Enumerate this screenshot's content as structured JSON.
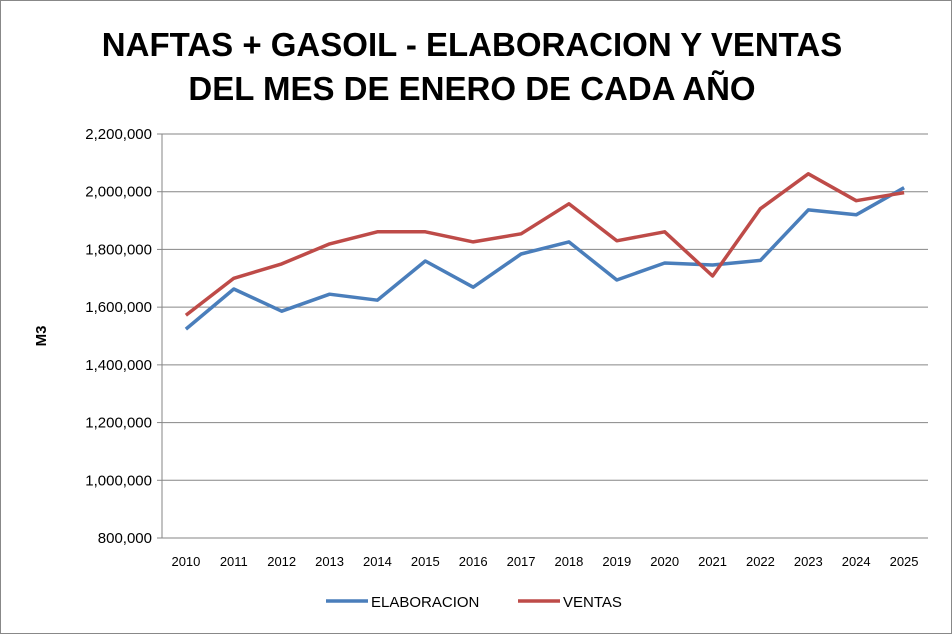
{
  "chart_data": {
    "type": "line",
    "title": [
      "NAFTAS + GASOIL - ELABORACION Y VENTAS",
      "DEL MES DE ENERO DE CADA AÑO"
    ],
    "xlabel": "",
    "ylabel": "M3",
    "ylim": [
      800000,
      2200000
    ],
    "yticks": [
      "800,000",
      "1,000,000",
      "1,200,000",
      "1,400,000",
      "1,600,000",
      "1,800,000",
      "2,000,000",
      "2,200,000"
    ],
    "ytick_values": [
      800000,
      1000000,
      1200000,
      1400000,
      1600000,
      1800000,
      2000000,
      2200000
    ],
    "categories": [
      "2010",
      "2011",
      "2012",
      "2013",
      "2014",
      "2015",
      "2016",
      "2017",
      "2018",
      "2019",
      "2020",
      "2021",
      "2022",
      "2023",
      "2024",
      "2025"
    ],
    "grid": true,
    "legend_position": "bottom",
    "series": [
      {
        "name": "ELABORACION",
        "color": "#4a7ebb",
        "values": [
          1524000,
          1663000,
          1586000,
          1645000,
          1624000,
          1760000,
          1669000,
          1784000,
          1826000,
          1694000,
          1753000,
          1746000,
          1762000,
          1937000,
          1920000,
          2014000
        ]
      },
      {
        "name": "VENTAS",
        "color": "#be4b48",
        "values": [
          1572000,
          1700000,
          1750000,
          1819000,
          1861000,
          1861000,
          1826000,
          1854000,
          1958000,
          1830000,
          1861000,
          1708000,
          1941000,
          2062000,
          1969000,
          1997000
        ]
      }
    ]
  }
}
